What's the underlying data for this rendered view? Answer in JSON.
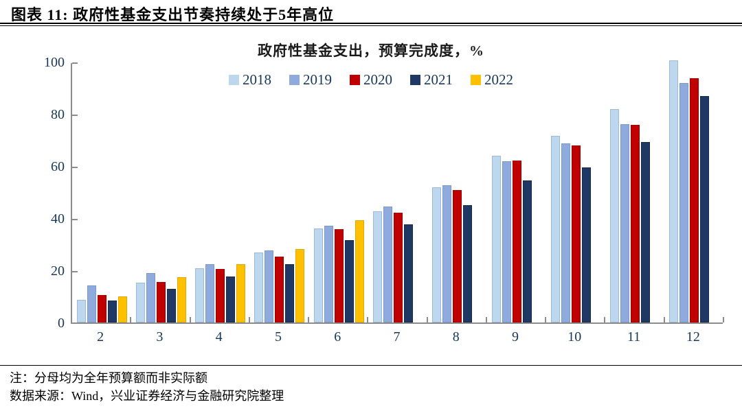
{
  "header": {
    "title": "图表 11: 政府性基金支出节奏持续处于5年高位"
  },
  "chart_data": {
    "type": "bar",
    "title": "政府性基金支出，预算完成度，%",
    "categories": [
      "2",
      "3",
      "4",
      "5",
      "6",
      "7",
      "8",
      "9",
      "10",
      "11",
      "12"
    ],
    "series": [
      {
        "name": "2018",
        "color": "#BDD7EE",
        "edge": "#9CB9D8",
        "values": [
          8.6,
          15.3,
          20.7,
          26.9,
          36.1,
          42.6,
          51.8,
          63.9,
          71.6,
          81.8,
          100.4
        ]
      },
      {
        "name": "2019",
        "color": "#8FAADC",
        "edge": "#7D99C9",
        "values": [
          14.2,
          18.9,
          22.3,
          27.6,
          37.2,
          44.6,
          52.7,
          61.9,
          68.8,
          76.1,
          91.9
        ]
      },
      {
        "name": "2020",
        "color": "#C00000",
        "edge": "#A00000",
        "values": [
          10.4,
          15.5,
          20.6,
          25.2,
          35.9,
          42.0,
          50.7,
          62.0,
          67.8,
          75.9,
          93.6
        ]
      },
      {
        "name": "2021",
        "color": "#1F3864",
        "edge": "#17294A",
        "values": [
          8.3,
          13.0,
          17.6,
          22.4,
          31.7,
          37.6,
          45.1,
          54.4,
          59.5,
          69.3,
          86.8
        ]
      },
      {
        "name": "2022",
        "color": "#FFC000",
        "edge": "#E0A800",
        "values": [
          9.9,
          17.5,
          22.5,
          28.2,
          39.3,
          null,
          null,
          null,
          null,
          null,
          null
        ]
      }
    ],
    "ylim": [
      0,
      100
    ],
    "yticks": [
      0,
      20,
      40,
      60,
      80,
      100
    ],
    "xlabel": "",
    "ylabel": "",
    "legend_position": "top",
    "grid": false
  },
  "footer": {
    "note": "注：分母均为全年预算额而非实际额",
    "source": "数据来源：Wind，兴业证券经济与金融研究院整理"
  },
  "colors": {
    "axis": "#8c8c8c",
    "axis_text": "#17375E",
    "title_text": "#000000"
  }
}
